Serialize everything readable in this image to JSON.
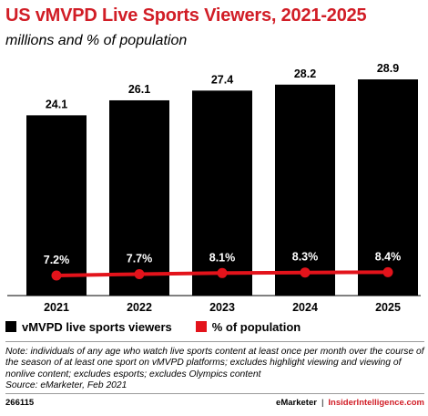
{
  "chart_data": {
    "type": "bar",
    "title": "US vMVPD Live Sports Viewers, 2021-2025",
    "subtitle": "millions and % of population",
    "categories": [
      "2021",
      "2022",
      "2023",
      "2024",
      "2025"
    ],
    "series": [
      {
        "name": "vMVPD live sports viewers",
        "type": "bar",
        "values": [
          24.1,
          26.1,
          27.4,
          28.2,
          28.9
        ],
        "labels": [
          "24.1",
          "26.1",
          "27.4",
          "28.2",
          "28.9"
        ],
        "color": "#000000"
      },
      {
        "name": "% of population",
        "type": "line",
        "values": [
          7.2,
          7.7,
          8.1,
          8.3,
          8.4
        ],
        "labels": [
          "7.2%",
          "7.7%",
          "8.1%",
          "8.3%",
          "8.4%"
        ],
        "color": "#e3131b"
      }
    ],
    "legend_position": "bottom-left",
    "grid": false
  },
  "note": "Note: individuals of any age who watch live sports content at least once per month over the course of the season of at least one sport on vMVPD platforms; excludes highlight viewing and viewing of nonlive content; excludes esports; excludes Olympics content",
  "source": "Source: eMarketer, Feb 2021",
  "footer": {
    "id": "266115",
    "brand1": "eMarketer",
    "separator": "|",
    "brand2": "InsiderIntelligence.com"
  }
}
